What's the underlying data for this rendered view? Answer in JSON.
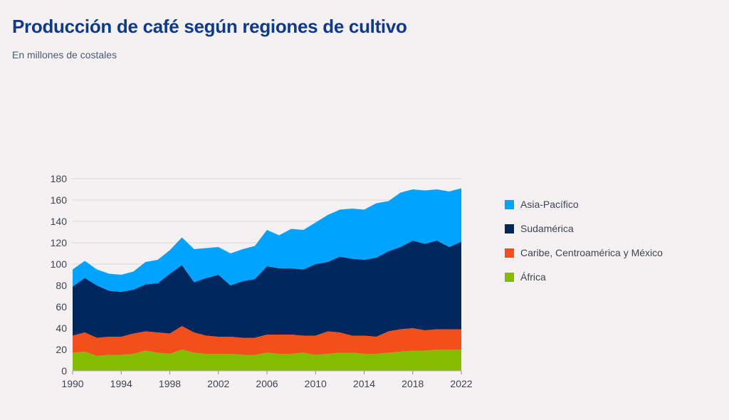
{
  "header": {
    "title": "Producción de café según regiones de cultivo",
    "subtitle": "En millones de costales"
  },
  "chart_data": {
    "type": "area",
    "stacked": true,
    "title": "Producción de café según regiones de cultivo",
    "subtitle": "En millones de costales",
    "xlabel": "",
    "ylabel": "",
    "ylim": [
      0,
      180
    ],
    "yticks": [
      "0",
      "20",
      "40",
      "60",
      "80",
      "100",
      "120",
      "140",
      "160",
      "180"
    ],
    "xticks": [
      "1990",
      "1994",
      "1998",
      "2002",
      "2006",
      "2010",
      "2014",
      "2018",
      "2022"
    ],
    "grid": true,
    "legend_position": "right",
    "x": [
      1990,
      1991,
      1992,
      1993,
      1994,
      1995,
      1996,
      1997,
      1998,
      1999,
      2000,
      2001,
      2002,
      2003,
      2004,
      2005,
      2006,
      2007,
      2008,
      2009,
      2010,
      2011,
      2012,
      2013,
      2014,
      2015,
      2016,
      2017,
      2018,
      2019,
      2020,
      2021,
      2022
    ],
    "series": [
      {
        "name": "África",
        "color": "#84bd00",
        "values": [
          17,
          18,
          14,
          15,
          15,
          16,
          19,
          17,
          16,
          20,
          17,
          16,
          16,
          16,
          15,
          15,
          17,
          16,
          16,
          17,
          15,
          16,
          17,
          17,
          16,
          16,
          17,
          18,
          19,
          19,
          20,
          20,
          20
        ]
      },
      {
        "name": "Caribe, Centroamérica y México",
        "color": "#f34f1c",
        "values": [
          16,
          18,
          17,
          17,
          17,
          19,
          18,
          19,
          19,
          22,
          19,
          17,
          16,
          16,
          16,
          16,
          17,
          18,
          18,
          16,
          18,
          21,
          19,
          16,
          17,
          16,
          20,
          21,
          21,
          19,
          19,
          19,
          19
        ]
      },
      {
        "name": "Sudamérica",
        "color": "#00285e",
        "values": [
          46,
          51,
          49,
          43,
          42,
          41,
          44,
          46,
          56,
          57,
          47,
          54,
          58,
          48,
          53,
          55,
          64,
          62,
          62,
          62,
          67,
          65,
          71,
          72,
          71,
          74,
          75,
          77,
          82,
          81,
          83,
          77,
          82
        ]
      },
      {
        "name": "Asia-Pacífico",
        "color": "#00a4ff",
        "values": [
          16,
          16,
          15,
          16,
          16,
          17,
          21,
          22,
          22,
          26,
          31,
          28,
          26,
          30,
          30,
          31,
          34,
          31,
          37,
          37,
          39,
          44,
          44,
          47,
          47,
          51,
          47,
          51,
          48,
          50,
          48,
          52,
          50
        ]
      }
    ]
  }
}
